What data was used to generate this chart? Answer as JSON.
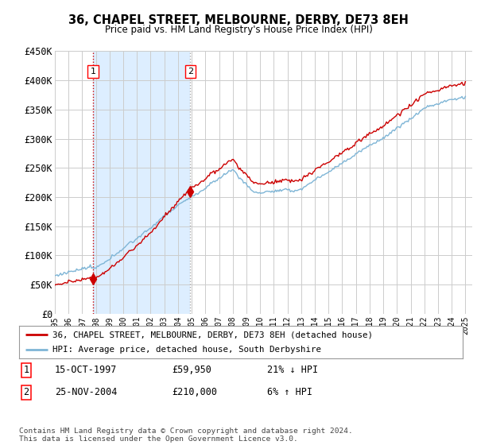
{
  "title": "36, CHAPEL STREET, MELBOURNE, DERBY, DE73 8EH",
  "subtitle": "Price paid vs. HM Land Registry's House Price Index (HPI)",
  "legend_line1": "36, CHAPEL STREET, MELBOURNE, DERBY, DE73 8EH (detached house)",
  "legend_line2": "HPI: Average price, detached house, South Derbyshire",
  "footer": "Contains HM Land Registry data © Crown copyright and database right 2024.\nThis data is licensed under the Open Government Licence v3.0.",
  "table": [
    {
      "num": "1",
      "date": "15-OCT-1997",
      "price": "£59,950",
      "change": "21% ↓ HPI"
    },
    {
      "num": "2",
      "date": "25-NOV-2004",
      "price": "£210,000",
      "change": "6% ↑ HPI"
    }
  ],
  "sale1_year": 1997.79,
  "sale1_price": 59950,
  "sale2_year": 2004.9,
  "sale2_price": 210000,
  "hpi_color": "#7eb5d6",
  "price_color": "#cc0000",
  "vline1_color": "#cc0000",
  "vline2_color": "#aaaaaa",
  "shade_color": "#ddeeff",
  "background_color": "#ffffff",
  "grid_color": "#cccccc",
  "ylim": [
    0,
    450000
  ],
  "xlim_start": 1995.0,
  "xlim_end": 2025.5,
  "yticks": [
    0,
    50000,
    100000,
    150000,
    200000,
    250000,
    300000,
    350000,
    400000,
    450000
  ],
  "ytick_labels": [
    "£0",
    "£50K",
    "£100K",
    "£150K",
    "£200K",
    "£250K",
    "£300K",
    "£350K",
    "£400K",
    "£450K"
  ],
  "xticks": [
    1995,
    1996,
    1997,
    1998,
    1999,
    2000,
    2001,
    2002,
    2003,
    2004,
    2005,
    2006,
    2007,
    2008,
    2009,
    2010,
    2011,
    2012,
    2013,
    2014,
    2015,
    2016,
    2017,
    2018,
    2019,
    2020,
    2021,
    2022,
    2023,
    2024,
    2025
  ]
}
